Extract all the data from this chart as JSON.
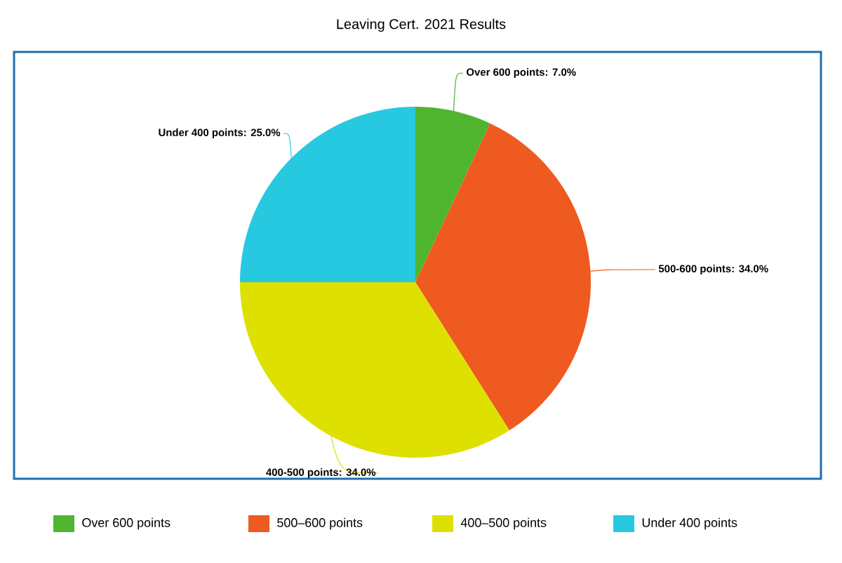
{
  "chart_data": {
    "type": "pie",
    "title": "Leaving Cert. 2021 Results",
    "categories": [
      "Over 600 points",
      "500–600 points",
      "400–500 points",
      "Under 400 points"
    ],
    "values": [
      7,
      34,
      34,
      25
    ],
    "colors": [
      "#4fb531",
      "#ee5a1f",
      "#dde000",
      "#27c9e0"
    ],
    "value_labels": [
      "Over 600 points: 7.0%",
      "500-600 points: 34.0%",
      "400-500 points: 34.0%",
      "Under 400 points: 25.0%"
    ],
    "legend": "bottom"
  }
}
